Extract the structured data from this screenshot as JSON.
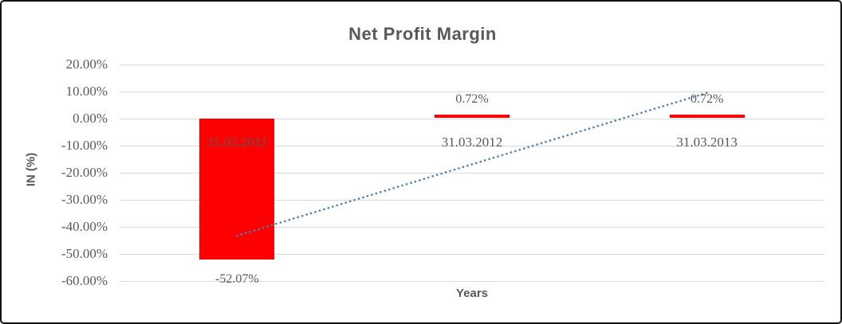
{
  "chart_data": {
    "type": "bar",
    "title": "Net Profit Margin",
    "xlabel": "Years",
    "ylabel": "IN (%)",
    "categories": [
      "31.03.2011",
      "31.03.2012",
      "31.03.2013"
    ],
    "series": [
      {
        "name": "Net Profit Margin",
        "values": [
          -52.07,
          0.72,
          0.72
        ]
      }
    ],
    "data_labels": [
      "-52.07%",
      "0.72%",
      "0.72%"
    ],
    "ytick_labels": [
      "20.00%",
      "10.00%",
      "0.00%",
      "-10.00%",
      "-20.00%",
      "-30.00%",
      "-40.00%",
      "-50.00%",
      "-60.00%"
    ],
    "ylim": [
      -60,
      20
    ],
    "grid": true,
    "legend": "none",
    "bar_color": "#FF0000",
    "grid_color": "#D9D9D9",
    "text_color": "#595959",
    "trendline": {
      "type": "linear",
      "style": "dotted",
      "color": "#4A7EBD",
      "start_value": -43.27,
      "end_value": 9.52
    }
  }
}
